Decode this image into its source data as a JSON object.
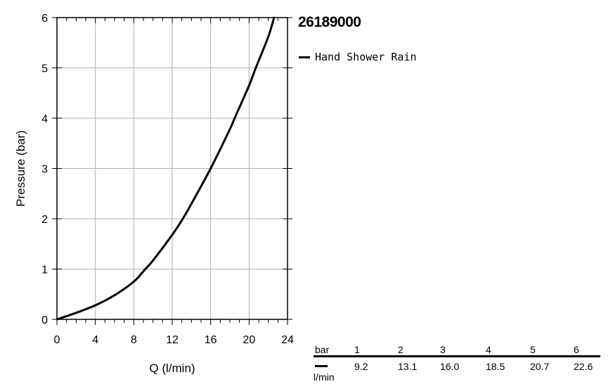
{
  "chart_data": {
    "type": "line",
    "title": "26189000",
    "xlabel": "Q (l/min)",
    "ylabel": "Pressure (bar)",
    "xlim": [
      0,
      24
    ],
    "ylim": [
      0,
      6
    ],
    "x_ticks": [
      "0",
      "4",
      "8",
      "12",
      "16",
      "20",
      "24"
    ],
    "y_ticks": [
      "0",
      "1",
      "2",
      "3",
      "4",
      "5",
      "6"
    ],
    "grid": true,
    "legend_position": "top-right outside plot",
    "series": [
      {
        "name": "Hand Shower Rain",
        "color": "#000000",
        "x": [
          0,
          2,
          4,
          6,
          8,
          9.2,
          10,
          12,
          13.1,
          14,
          16,
          18,
          18.5,
          20,
          20.7,
          22,
          22.6
        ],
        "y": [
          0,
          0.13,
          0.28,
          0.48,
          0.75,
          1,
          1.17,
          1.68,
          2,
          2.3,
          3,
          3.78,
          4,
          4.65,
          5,
          5.62,
          6
        ]
      }
    ]
  },
  "flow_table": {
    "header_label": "bar",
    "unit_label": "l/min",
    "pressures": [
      "1",
      "2",
      "3",
      "4",
      "5",
      "6"
    ],
    "flows": [
      "9.2",
      "13.1",
      "16.0",
      "18.5",
      "20.7",
      "22.6"
    ]
  }
}
